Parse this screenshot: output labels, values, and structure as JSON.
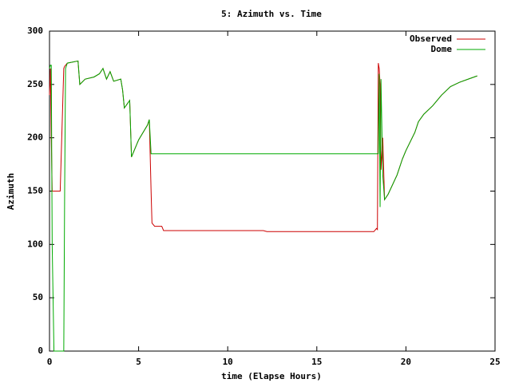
{
  "chart_data": {
    "type": "line",
    "title": "5: Azimuth vs. Time",
    "x_label": "time (Elapse Hours)",
    "y_label": "Azimuth",
    "x": [
      0,
      0.05,
      0.1,
      0.15,
      0.2,
      0.25,
      0.6,
      0.8,
      0.85,
      0.9,
      1.0,
      1.6,
      1.7,
      2.0,
      2.5,
      2.8,
      3.0,
      3.2,
      3.4,
      3.6,
      4.0,
      4.1,
      4.2,
      4.5,
      4.6,
      5.0,
      5.5,
      5.6,
      5.7,
      5.75,
      5.9,
      6.3,
      6.4,
      12.0,
      12.2,
      18.2,
      18.35,
      18.4,
      18.45,
      18.5,
      18.55,
      18.6,
      18.7,
      18.8,
      19.0,
      19.5,
      19.8,
      20.0,
      20.5,
      20.7,
      21.0,
      21.5,
      22.0,
      22.5,
      23.0,
      23.5,
      24.0
    ],
    "series": [
      {
        "name": "Observed",
        "color": "#cc0000",
        "values": [
          240,
          265,
          200,
          150,
          150,
          150,
          150,
          265,
          267,
          268,
          270,
          272,
          250,
          255,
          257,
          260,
          265,
          255,
          262,
          253,
          255,
          245,
          228,
          235,
          182,
          198,
          212,
          217,
          150,
          120,
          117,
          117,
          113,
          113,
          112,
          112,
          115,
          114,
          270,
          265,
          250,
          170,
          200,
          142,
          147,
          165,
          180,
          188,
          205,
          215,
          222,
          230,
          240,
          248,
          252,
          255,
          258
        ]
      },
      {
        "name": "Dome",
        "color": "#00aa00",
        "values": [
          265,
          268,
          268,
          100,
          50,
          0,
          0,
          0,
          150,
          265,
          270,
          272,
          250,
          255,
          257,
          260,
          265,
          255,
          262,
          253,
          255,
          245,
          228,
          235,
          182,
          198,
          212,
          217,
          185,
          185,
          185,
          185,
          185,
          185,
          185,
          185,
          185,
          185,
          185,
          260,
          135,
          255,
          165,
          142,
          147,
          165,
          180,
          188,
          205,
          215,
          222,
          230,
          240,
          248,
          252,
          255,
          258
        ]
      }
    ],
    "xlim": [
      0,
      25
    ],
    "xticks": [
      0,
      5,
      10,
      15,
      20,
      25
    ],
    "ylim": [
      0,
      300
    ],
    "yticks": [
      0,
      50,
      100,
      150,
      200,
      250,
      300
    ],
    "legend": "top-right"
  }
}
